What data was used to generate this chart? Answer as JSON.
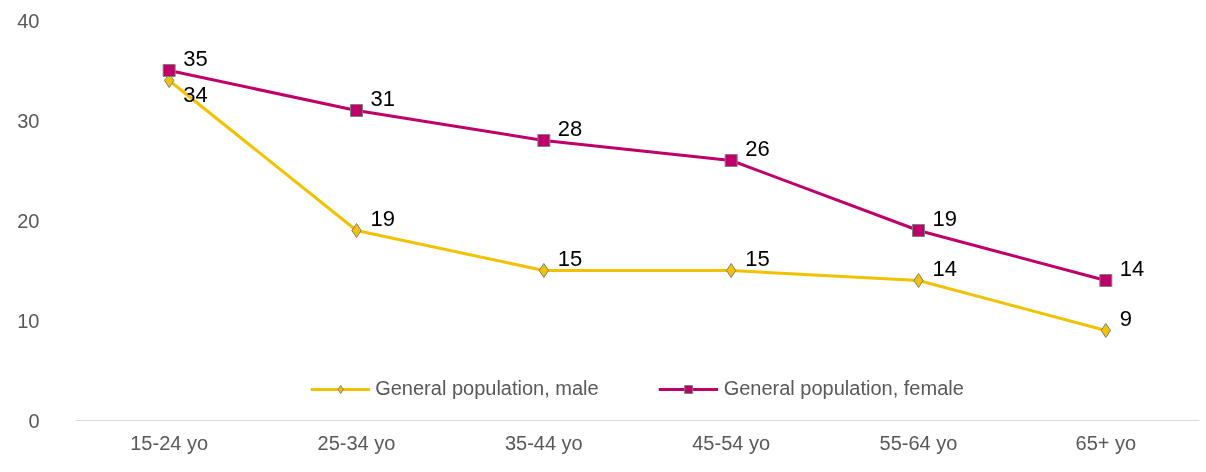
{
  "chart_data": {
    "type": "line",
    "categories": [
      "15-24 yo",
      "25-34 yo",
      "35-44 yo",
      "45-54 yo",
      "55-64 yo",
      "65+ yo"
    ],
    "series": [
      {
        "name": "General population, male",
        "color": "#f2c200",
        "marker": "diamond",
        "values": [
          34,
          19,
          15,
          15,
          14,
          9
        ]
      },
      {
        "name": "General population, female",
        "color": "#c0006a",
        "marker": "square",
        "values": [
          35,
          31,
          28,
          26,
          19,
          14
        ]
      }
    ],
    "ylim": [
      0,
      40
    ],
    "yticks": [
      0,
      10,
      20,
      30,
      40
    ],
    "grid": false,
    "legend": "bottom",
    "data_labels": true,
    "line_style": "solid"
  }
}
